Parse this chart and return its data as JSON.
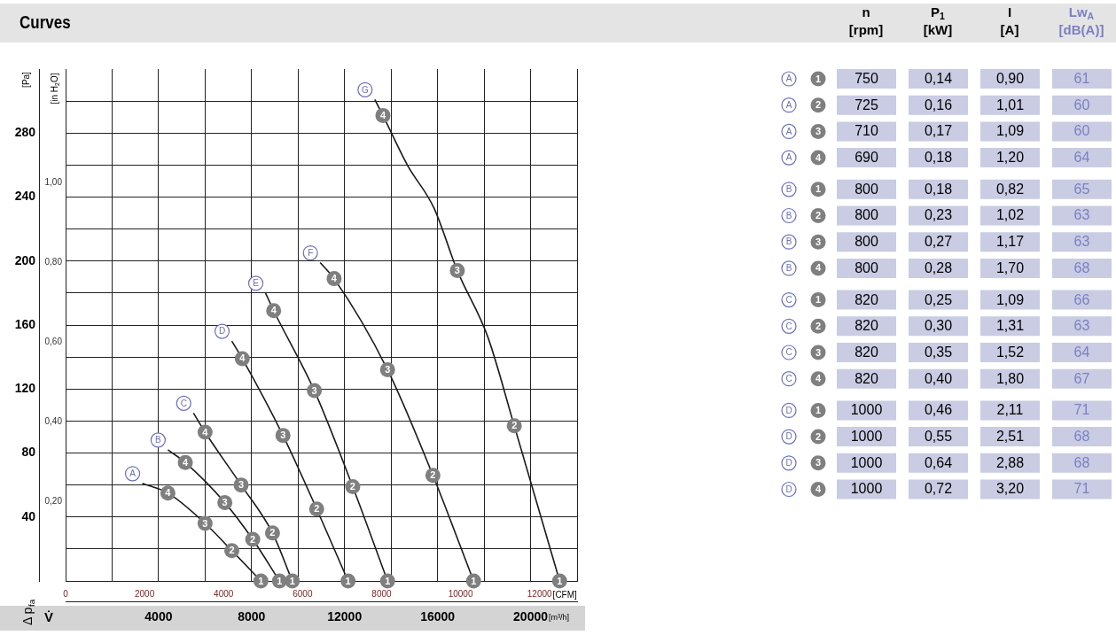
{
  "chart_data": [
    {
      "type": "line",
      "title": "Curves",
      "ylabel": "[Pa]",
      "y2label": "[in H$_{2}$O]",
      "xlabel": "[m³/h]",
      "x2label": "[CFM]",
      "grid": true,
      "marker": "circle",
      "xlim": [
        0,
        22000
      ],
      "xticks": [
        {
          "value": 2000,
          "label": null
        },
        4000,
        {
          "value": 6000,
          "label": null
        },
        8000,
        {
          "value": 10000,
          "label": null
        },
        12000,
        {
          "value": 14000,
          "label": null
        },
        16000,
        {
          "value": 18000,
          "label": null
        },
        20000,
        {
          "value": 22000,
          "label": null
        }
      ],
      "ylim": [
        0,
        320
      ],
      "yticks": [
        {
          "value": 0,
          "label": null
        },
        {
          "value": 20,
          "label": null
        },
        40,
        {
          "value": 60,
          "label": null
        },
        80,
        {
          "value": 100,
          "label": null
        },
        120,
        {
          "value": 140,
          "label": null
        },
        160,
        {
          "value": 180,
          "label": null
        },
        200,
        {
          "value": 220,
          "label": null
        },
        240,
        {
          "value": 260,
          "label": null
        },
        280,
        {
          "value": 300,
          "label": null
        }
      ],
      "x2lim": [
        0,
        12949
      ],
      "x2ticks": [
        0,
        2000,
        4000,
        6000,
        8000,
        10000,
        12000
      ],
      "y2lim": [
        0,
        1.2847
      ],
      "y2ticks": [
        {
          "value": 0.2,
          "label": "0,20"
        },
        {
          "value": 0.4,
          "label": "0,40"
        },
        {
          "value": 0.6,
          "label": "0,60"
        },
        {
          "value": 0.8,
          "label": "0,80"
        },
        {
          "value": 1.0,
          "label": "1,00"
        }
      ],
      "series": [
        {
          "name": "A",
          "color": "#1a1a1a",
          "x": [
            3300,
            4400,
            6000,
            7150,
            8400
          ],
          "values": [
            61,
            55,
            36,
            19,
            0
          ]
        },
        {
          "name": "B",
          "color": "#1a1a1a",
          "x": [
            4400,
            5150,
            6850,
            8050,
            9200
          ],
          "values": [
            82,
            74,
            49,
            26,
            0
          ]
        },
        {
          "name": "C",
          "color": "#1a1a1a",
          "x": [
            5500,
            6000,
            7550,
            8900,
            9750
          ],
          "values": [
            105,
            93,
            60,
            30,
            0
          ]
        },
        {
          "name": "D",
          "color": "#1a1a1a",
          "x": [
            7150,
            7600,
            9350,
            10800,
            12150
          ],
          "values": [
            150,
            139,
            91,
            45,
            0
          ]
        },
        {
          "name": "E",
          "color": "#1a1a1a",
          "x": [
            8600,
            8950,
            10700,
            12350,
            13850
          ],
          "values": [
            180,
            169,
            119,
            59,
            0
          ]
        },
        {
          "name": "F",
          "color": "#1a1a1a",
          "x": [
            10950,
            11550,
            13850,
            15800,
            17550
          ],
          "values": [
            199,
            189,
            132,
            66,
            0
          ]
        },
        {
          "name": "G",
          "color": "#1a1a1a",
          "x": [
            13300,
            13650,
            14700,
            15850,
            16850,
            18150,
            19300,
            21250
          ],
          "values": [
            301,
            291,
            260,
            233,
            194,
            153,
            97,
            0
          ]
        }
      ],
      "annotations": [
        "Δ p$_{fa}$",
        "V̇",
        {
          "text": "4",
          "x": 4400,
          "y": 55
        },
        {
          "text": "3",
          "x": 6000,
          "y": 36
        },
        {
          "text": "2",
          "x": 7150,
          "y": 19
        },
        {
          "text": "1",
          "x": 8400,
          "y": 0
        },
        {
          "text": "4",
          "x": 5150,
          "y": 74
        },
        {
          "text": "3",
          "x": 6850,
          "y": 49
        },
        {
          "text": "2",
          "x": 8050,
          "y": 26
        },
        {
          "text": "1",
          "x": 9200,
          "y": 0
        },
        {
          "text": "4",
          "x": 6000,
          "y": 93
        },
        {
          "text": "3",
          "x": 7550,
          "y": 60
        },
        {
          "text": "2",
          "x": 8900,
          "y": 30
        },
        {
          "text": "1",
          "x": 9750,
          "y": 0
        },
        {
          "text": "4",
          "x": 7600,
          "y": 139
        },
        {
          "text": "3",
          "x": 9350,
          "y": 91
        },
        {
          "text": "2",
          "x": 10800,
          "y": 45
        },
        {
          "text": "1",
          "x": 12150,
          "y": 0
        },
        {
          "text": "4",
          "x": 8950,
          "y": 169
        },
        {
          "text": "3",
          "x": 10700,
          "y": 119
        },
        {
          "text": "2",
          "x": 12350,
          "y": 59
        },
        {
          "text": "1",
          "x": 13850,
          "y": 0
        },
        {
          "text": "4",
          "x": 11550,
          "y": 189
        },
        {
          "text": "3",
          "x": 13850,
          "y": 132
        },
        {
          "text": "2",
          "x": 15800,
          "y": 66
        },
        {
          "text": "1",
          "x": 17550,
          "y": 0
        },
        {
          "text": "4",
          "x": 13650,
          "y": 291
        },
        {
          "text": "3",
          "x": 16850,
          "y": 194
        },
        {
          "text": "2",
          "x": 19300,
          "y": 97
        },
        {
          "text": "1",
          "x": 21250,
          "y": 0
        }
      ]
    },
    {
      "type": "heatmap",
      "categories": [
        "n [rpm]",
        "P$_{1}$ [kW]",
        "I [A]",
        "Lw$_{A}$ [dB(A)]"
      ],
      "y_categories": [
        "A 1",
        "A 2",
        "A 3",
        "A 4",
        "B 1",
        "B 2",
        "B 3",
        "B 4",
        "C 1",
        "C 2",
        "C 3",
        "C 4",
        "D 1",
        "D 2",
        "D 3",
        "D 4"
      ],
      "cells": [
        [
          750,
          0.14,
          0.9,
          61
        ],
        [
          725,
          0.16,
          1.01,
          60
        ],
        [
          710,
          0.17,
          1.09,
          60
        ],
        [
          690,
          0.18,
          1.2,
          64
        ],
        [
          800,
          0.18,
          0.82,
          65
        ],
        [
          800,
          0.23,
          1.02,
          63
        ],
        [
          800,
          0.27,
          1.17,
          63
        ],
        [
          800,
          0.28,
          1.7,
          68
        ],
        [
          820,
          0.25,
          1.09,
          66
        ],
        [
          820,
          0.3,
          1.31,
          63
        ],
        [
          820,
          0.35,
          1.52,
          64
        ],
        [
          820,
          0.4,
          1.8,
          67
        ],
        [
          1000,
          0.46,
          2.11,
          71
        ],
        [
          1000,
          0.55,
          2.51,
          68
        ],
        [
          1000,
          0.64,
          2.88,
          68
        ],
        [
          1000,
          0.72,
          3.2,
          71
        ]
      ],
      "cell_labels": [
        [
          "750",
          "0,14",
          "0,90",
          "61"
        ],
        [
          "725",
          "0,16",
          "1,01",
          "60"
        ],
        [
          "710",
          "0,17",
          "1,09",
          "60"
        ],
        [
          "690",
          "0,18",
          "1,20",
          "64"
        ],
        [
          "800",
          "0,18",
          "0,82",
          "65"
        ],
        [
          "800",
          "0,23",
          "1,02",
          "63"
        ],
        [
          "800",
          "0,27",
          "1,17",
          "63"
        ],
        [
          "800",
          "0,28",
          "1,70",
          "68"
        ],
        [
          "820",
          "0,25",
          "1,09",
          "66"
        ],
        [
          "820",
          "0,30",
          "1,31",
          "63"
        ],
        [
          "820",
          "0,35",
          "1,52",
          "64"
        ],
        [
          "820",
          "0,40",
          "1,80",
          "67"
        ],
        [
          "1000",
          "0,46",
          "2,11",
          "71"
        ],
        [
          "1000",
          "0,55",
          "2,51",
          "68"
        ],
        [
          "1000",
          "0,64",
          "2,88",
          "68"
        ],
        [
          "1000",
          "0,72",
          "3,20",
          "71"
        ]
      ]
    }
  ]
}
